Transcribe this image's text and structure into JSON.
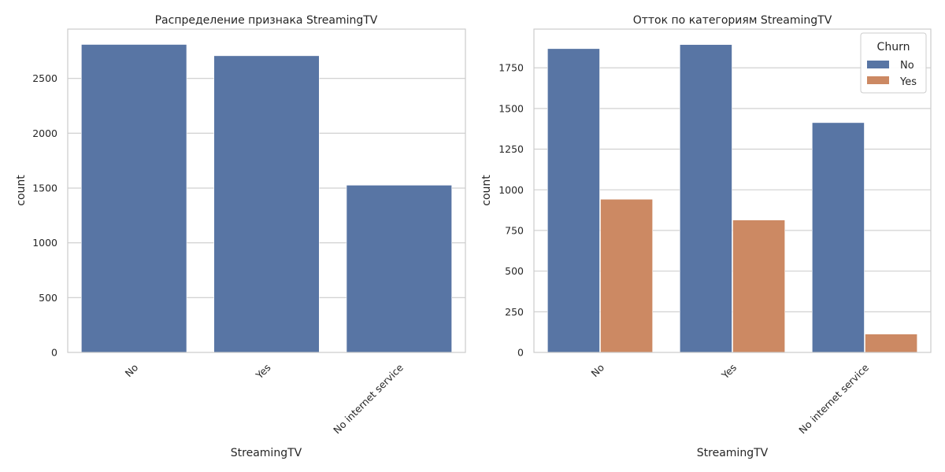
{
  "chart_data": [
    {
      "type": "bar",
      "title": "Распределение признака StreamingTV",
      "xlabel": "StreamingTV",
      "ylabel": "count",
      "categories": [
        "No",
        "Yes",
        "No internet service"
      ],
      "values": [
        2810,
        2707,
        1526
      ],
      "ylim": [
        0,
        2950
      ],
      "yticks": [
        0,
        500,
        1000,
        1500,
        2000,
        2500
      ],
      "grid": true,
      "color": "#5875a4"
    },
    {
      "type": "bar",
      "title": "Отток по категориям StreamingTV",
      "xlabel": "StreamingTV",
      "ylabel": "count",
      "categories": [
        "No",
        "Yes",
        "No internet service"
      ],
      "series": [
        {
          "name": "No",
          "values": [
            1868,
            1893,
            1413
          ],
          "color": "#5875a4"
        },
        {
          "name": "Yes",
          "values": [
            942,
            814,
            113
          ],
          "color": "#cc8963"
        }
      ],
      "ylim": [
        0,
        1988
      ],
      "yticks": [
        0,
        250,
        500,
        750,
        1000,
        1250,
        1500,
        1750
      ],
      "grid": true,
      "legend": {
        "title": "Churn",
        "placement": "top-right"
      }
    }
  ]
}
